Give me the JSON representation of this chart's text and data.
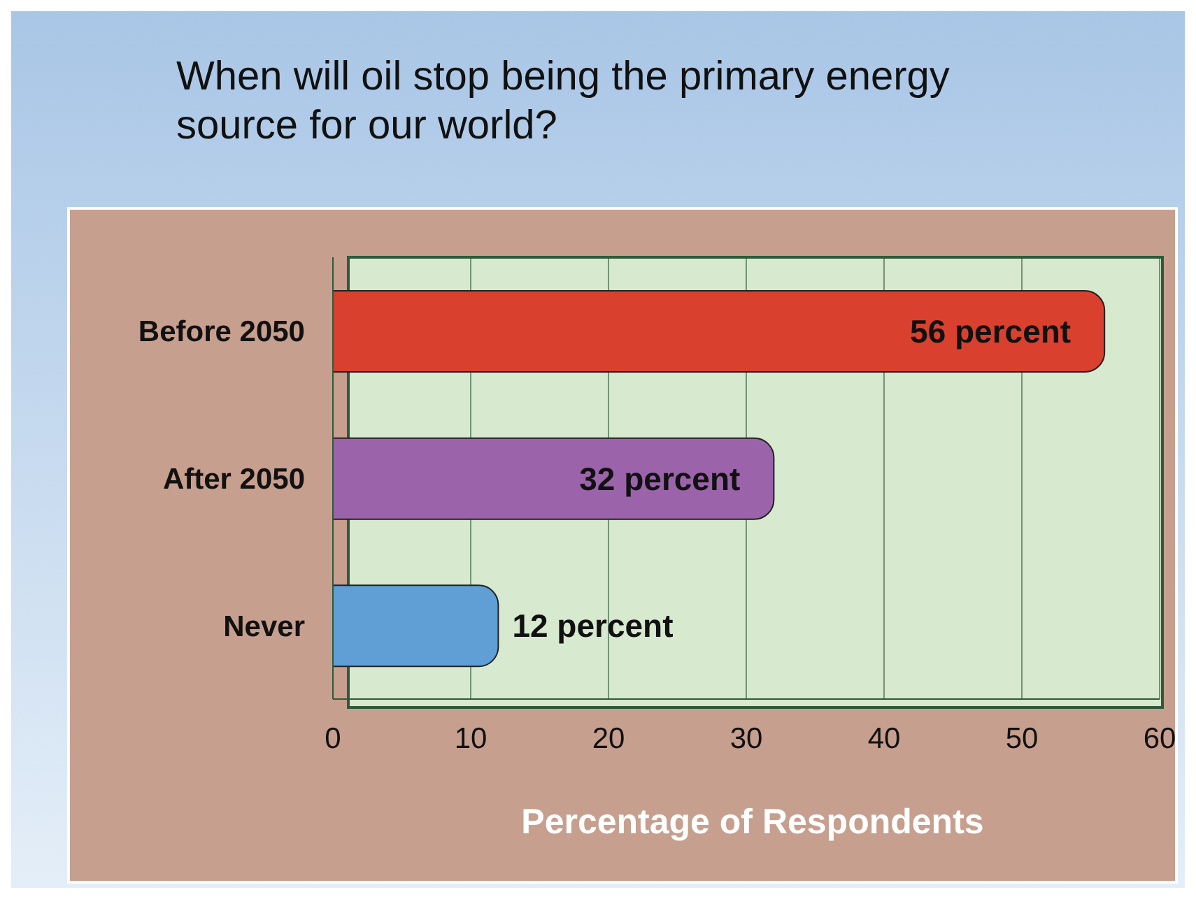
{
  "chart_data": {
    "type": "bar",
    "orientation": "horizontal",
    "title": "When will oil stop being the primary energy source for our world?",
    "xlabel": "Percentage of Respondents",
    "categories": [
      "Before 2050",
      "After 2050",
      "Never"
    ],
    "values": [
      56,
      32,
      12
    ],
    "colors": [
      "#d9412e",
      "#9b64aa",
      "#5f9fd6"
    ],
    "value_labels": [
      "56 percent",
      "32 percent",
      "12 percent"
    ],
    "xlim": [
      0,
      60
    ],
    "xticks": [
      0,
      10,
      20,
      30,
      40,
      50,
      60
    ],
    "grid": "x"
  }
}
